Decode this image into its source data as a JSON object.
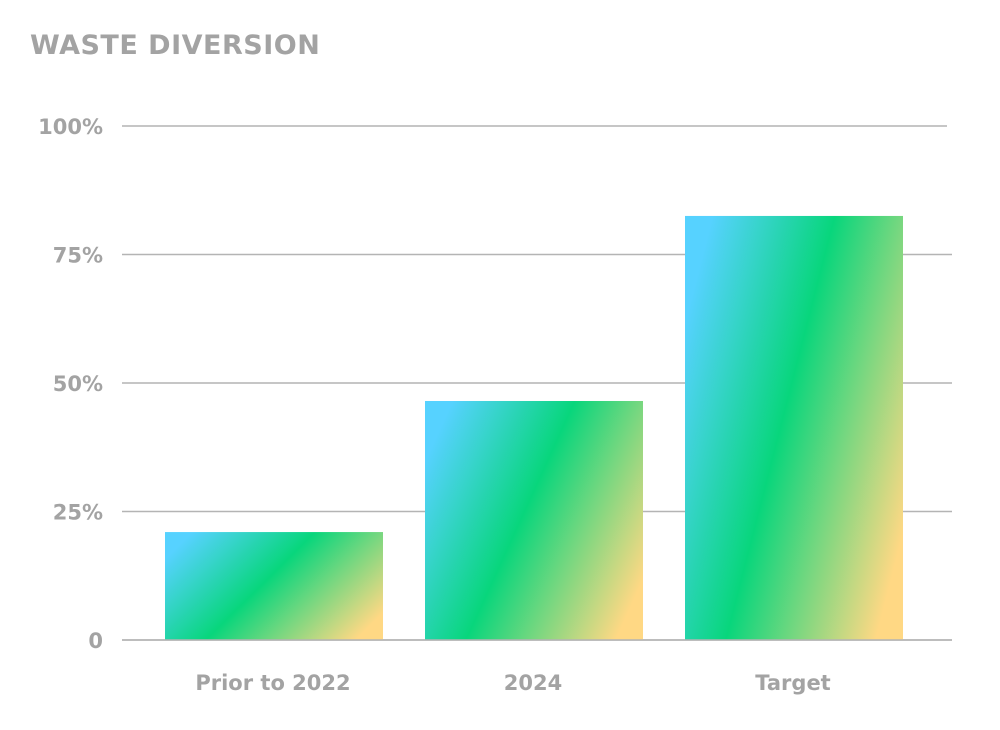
{
  "chart_data": {
    "type": "bar",
    "title": "WASTE DIVERSION",
    "xlabel": "",
    "ylabel": "",
    "categories": [
      "Prior to 2022",
      "2024",
      "Target"
    ],
    "values": [
      21,
      46.5,
      82.5
    ],
    "unit": "%",
    "ylim": [
      0,
      100
    ],
    "yticks": [
      0,
      25,
      50,
      75,
      100
    ],
    "ytick_labels": [
      "0",
      "25%",
      "50%",
      "75%",
      "100%"
    ],
    "grid": true,
    "legend": "none",
    "bar_gradient": [
      "#56d2ff",
      "#08d67c",
      "#ffd884"
    ]
  }
}
